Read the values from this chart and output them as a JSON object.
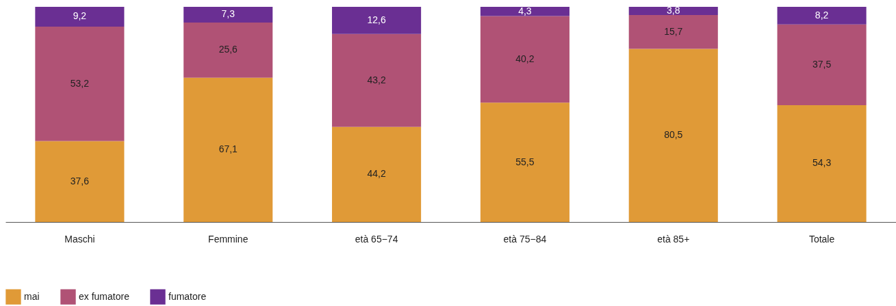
{
  "chart_data": {
    "type": "bar",
    "stacked": true,
    "categories": [
      "Maschi",
      "Femmine",
      "età 65−74",
      "età 75−84",
      "età 85+",
      "Totale"
    ],
    "series": [
      {
        "name": "mai",
        "color": "#e09a37",
        "values": [
          37.6,
          67.1,
          44.2,
          55.5,
          80.5,
          54.3
        ],
        "value_labels": [
          "37,6",
          "67,1",
          "44,2",
          "55,5",
          "80,5",
          "54,3"
        ]
      },
      {
        "name": "ex fumatore",
        "color": "#b05275",
        "values": [
          53.2,
          25.6,
          43.2,
          40.2,
          15.7,
          37.5
        ],
        "value_labels": [
          "53,2",
          "25,6",
          "43,2",
          "40,2",
          "15,7",
          "37,5"
        ]
      },
      {
        "name": "fumatore",
        "color": "#6a2f93",
        "values": [
          9.2,
          7.3,
          12.6,
          4.3,
          3.8,
          8.2
        ],
        "value_labels": [
          "9,2",
          "7,3",
          "12,6",
          "4,3",
          "3,8",
          "8,2"
        ]
      }
    ],
    "ylim": [
      0,
      100
    ],
    "legend": "bottom"
  }
}
